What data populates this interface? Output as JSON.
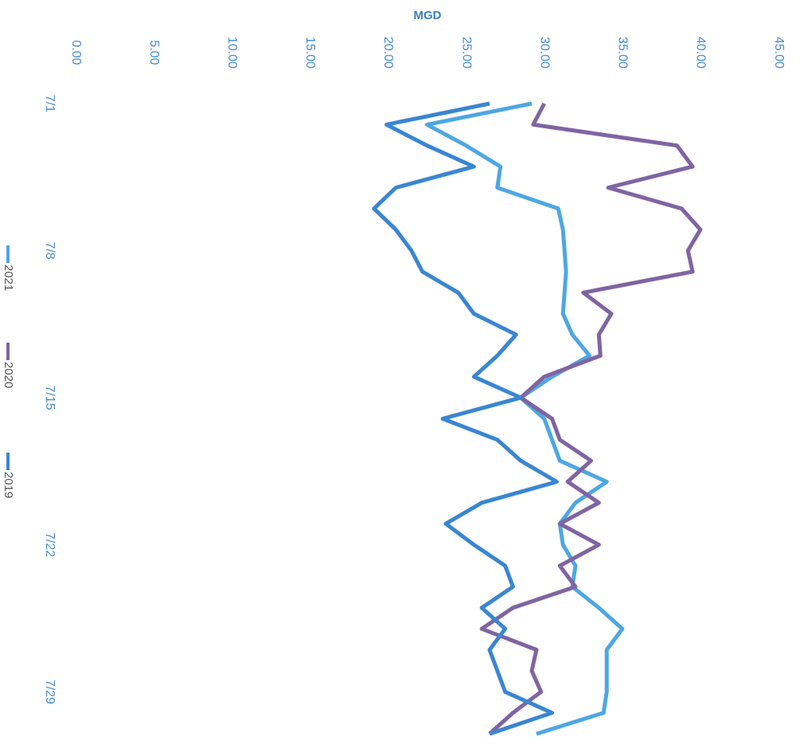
{
  "chart_data": {
    "type": "line",
    "title": "MGD",
    "categories": [
      "7/1",
      null,
      null,
      null,
      null,
      null,
      null,
      "7/8",
      null,
      null,
      null,
      null,
      null,
      null,
      "7/15",
      null,
      null,
      null,
      null,
      null,
      null,
      "7/22",
      null,
      null,
      null,
      null,
      null,
      null,
      "7/29",
      null,
      null
    ],
    "ylim": [
      0,
      45
    ],
    "yticks": [
      {
        "value": 0,
        "label": "0.00"
      },
      {
        "value": 5,
        "label": "5.00"
      },
      {
        "value": 10,
        "label": "10.00"
      },
      {
        "value": 15,
        "label": "15.00"
      },
      {
        "value": 20,
        "label": "20.00"
      },
      {
        "value": 25,
        "label": "25.00"
      },
      {
        "value": 30,
        "label": "30.00"
      },
      {
        "value": 35,
        "label": "35.00"
      },
      {
        "value": 40,
        "label": "40.00"
      },
      {
        "value": 45,
        "label": "45.00"
      }
    ],
    "series": [
      {
        "name": "2021",
        "color": "#4ea7e2",
        "values": [
          29.2,
          22.5,
          25.0,
          27.2,
          27.0,
          30.9,
          31.2,
          31.3,
          31.4,
          31.3,
          31.2,
          31.8,
          32.9,
          30.5,
          28.5,
          30.0,
          30.5,
          31.0,
          34.0,
          32.0,
          31.0,
          31.2,
          32.0,
          31.8,
          33.5,
          35.0,
          34.0,
          34.0,
          34.0,
          33.8,
          29.5
        ]
      },
      {
        "name": "2020",
        "color": "#8064a2",
        "values": [
          30.0,
          29.3,
          38.5,
          39.5,
          34.1,
          38.8,
          40.0,
          39.2,
          39.5,
          32.5,
          34.3,
          33.5,
          33.6,
          30.0,
          28.5,
          30.5,
          31.0,
          33.0,
          31.5,
          33.5,
          31.0,
          33.5,
          31.0,
          32.0,
          28.0,
          26.0,
          29.5,
          29.2,
          29.8,
          28.0,
          26.5
        ]
      },
      {
        "name": "2019",
        "color": "#3a86d1",
        "values": [
          26.5,
          19.9,
          22.5,
          25.5,
          20.5,
          19.1,
          20.5,
          21.5,
          22.2,
          24.5,
          25.5,
          28.2,
          27.0,
          25.5,
          28.5,
          23.5,
          27.0,
          28.5,
          30.8,
          26.0,
          23.7,
          25.5,
          27.5,
          28.0,
          26.0,
          27.5,
          26.5,
          27.0,
          27.5,
          30.5,
          26.5
        ]
      }
    ]
  }
}
